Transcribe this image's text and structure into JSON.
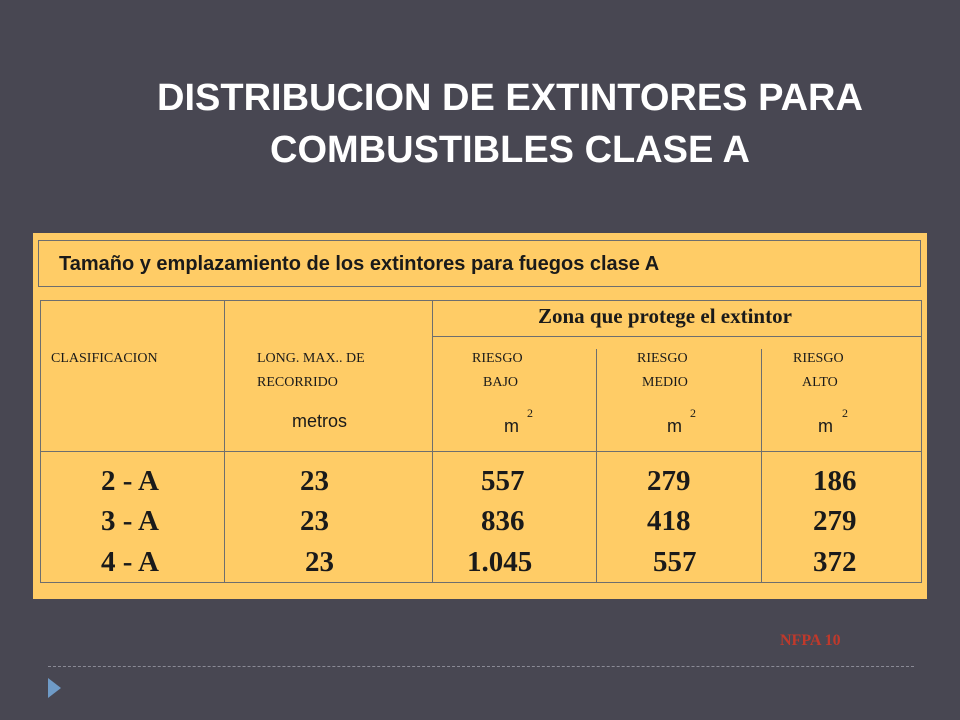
{
  "slide": {
    "title_line1": "DISTRIBUCION DE EXTINTORES PARA",
    "title_line2": "COMBUSTIBLES CLASE A",
    "caption": "Tamaño y emplazamiento de los extintores para fuegos clase A",
    "zone_header": "Zona que protege el extintor",
    "source": "NFPA 10"
  },
  "table": {
    "headers": {
      "clasificacion": "CLASIFICACION",
      "recorrido_l1": "LONG. MAX.. DE",
      "recorrido_l2": "RECORRIDO",
      "recorrido_unit": "metros",
      "bajo_l1": "RIESGO",
      "bajo_l2": "BAJO",
      "medio_l1": "RIESGO",
      "medio_l2": "MEDIO",
      "alto_l1": "RIESGO",
      "alto_l2": "ALTO",
      "area_unit": "m",
      "area_exp": "2"
    },
    "rows": [
      {
        "clasificacion": "2 - A",
        "recorrido": "23",
        "bajo": "557",
        "medio": "279",
        "alto": "186"
      },
      {
        "clasificacion": "3 - A",
        "recorrido": "23",
        "bajo": "836",
        "medio": "418",
        "alto": "279"
      },
      {
        "clasificacion": "4 - A",
        "recorrido": "23",
        "bajo": "1.045",
        "medio": "557",
        "alto": "372"
      }
    ]
  },
  "colors": {
    "background": "#484752",
    "panel": "#ffcc66",
    "source_text": "#c0392b",
    "bullet": "#6f9bc7"
  },
  "icons": {
    "bullet": "triangle-bullet-icon"
  }
}
